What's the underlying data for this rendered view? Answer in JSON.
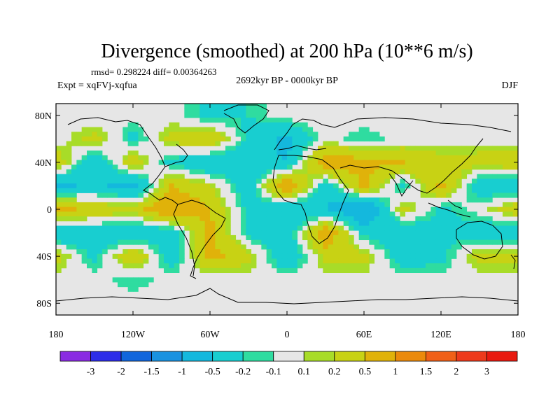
{
  "chart_data": {
    "type": "heatmap",
    "title": "Divergence (smoothed) at 200 hPa (10**6 m/s)",
    "stats_line": "rmsd= 0.298224 diff= 0.00364263",
    "experiment_label": "Expt = xqFVj-xqfua",
    "period_label": "2692kyr BP - 0000kyr BP",
    "season_label": "DJF",
    "xlim": [
      -180,
      180
    ],
    "ylim": [
      -90,
      90
    ],
    "x_ticks": [
      {
        "value": -180,
        "label": "180"
      },
      {
        "value": -120,
        "label": "120W"
      },
      {
        "value": -60,
        "label": "60W"
      },
      {
        "value": 0,
        "label": "0"
      },
      {
        "value": 60,
        "label": "60E"
      },
      {
        "value": 120,
        "label": "120E"
      },
      {
        "value": 180,
        "label": "180"
      }
    ],
    "y_ticks": [
      {
        "value": 80,
        "label": "80N"
      },
      {
        "value": 40,
        "label": "40N"
      },
      {
        "value": 0,
        "label": "0"
      },
      {
        "value": -40,
        "label": "40S"
      },
      {
        "value": -80,
        "label": "80S"
      }
    ],
    "colorbar": {
      "boundary_labels": [
        "-3",
        "-2",
        "-1.5",
        "-1",
        "-0.5",
        "-0.2",
        "-0.1",
        "0.1",
        "0.2",
        "0.5",
        "1",
        "1.5",
        "2",
        "3"
      ],
      "boundaries": [
        -3,
        -2,
        -1.5,
        -1,
        -0.5,
        -0.2,
        -0.1,
        0.1,
        0.2,
        0.5,
        1,
        1.5,
        2,
        3
      ],
      "colors": [
        "#8a2be2",
        "#2d2de8",
        "#1266dc",
        "#1a92e0",
        "#14b8dd",
        "#18ced0",
        "#2fdca0",
        "#e6e6e6",
        "#a8dc28",
        "#c8d214",
        "#e0b20a",
        "#eb8a0c",
        "#f06018",
        "#ed3a1c",
        "#e81a10"
      ]
    },
    "field": {
      "description_values_in_units": "10**6 m/s",
      "lon": [
        -180,
        -150,
        -120,
        -90,
        -60,
        -30,
        0,
        30,
        60,
        90,
        120,
        150,
        180
      ],
      "lat": [
        80,
        60,
        40,
        20,
        0,
        -20,
        -40,
        -60,
        -80
      ],
      "values": [
        [
          0.0,
          -0.05,
          0.0,
          0.0,
          -0.3,
          -0.2,
          0.0,
          0.0,
          0.0,
          0.0,
          0.0,
          0.0,
          0.0
        ],
        [
          0.0,
          0.3,
          -0.3,
          0.3,
          0.5,
          -0.3,
          -0.6,
          0.0,
          -0.2,
          0.0,
          0.0,
          0.05,
          0.0
        ],
        [
          0.4,
          -0.5,
          0.4,
          -0.3,
          -0.5,
          -0.4,
          -0.5,
          0.8,
          0.6,
          0.5,
          0.3,
          0.3,
          0.4
        ],
        [
          -0.6,
          -0.4,
          -0.7,
          0.5,
          0.2,
          -0.4,
          0.9,
          -0.4,
          0.6,
          -0.3,
          0.6,
          -0.4,
          -0.5
        ],
        [
          0.6,
          0.4,
          0.3,
          0.9,
          0.5,
          -0.3,
          -0.5,
          -0.5,
          -1.0,
          0.3,
          -0.3,
          0.0,
          0.4
        ],
        [
          -0.5,
          -0.4,
          -0.5,
          -0.4,
          0.6,
          -0.3,
          -0.4,
          0.8,
          -0.3,
          -0.5,
          -0.2,
          -0.4,
          -0.5
        ],
        [
          0.3,
          -0.3,
          0.5,
          -0.4,
          0.6,
          0.3,
          -0.5,
          0.3,
          0.3,
          -0.4,
          -0.3,
          0.3,
          0.3
        ],
        [
          0.0,
          0.0,
          -0.2,
          0.0,
          -0.1,
          0.0,
          0.0,
          0.0,
          0.0,
          0.0,
          0.0,
          0.0,
          0.0
        ],
        [
          0.0,
          0.0,
          0.0,
          0.0,
          0.0,
          0.0,
          0.0,
          0.0,
          0.0,
          0.0,
          0.0,
          0.0,
          0.0
        ]
      ]
    }
  }
}
